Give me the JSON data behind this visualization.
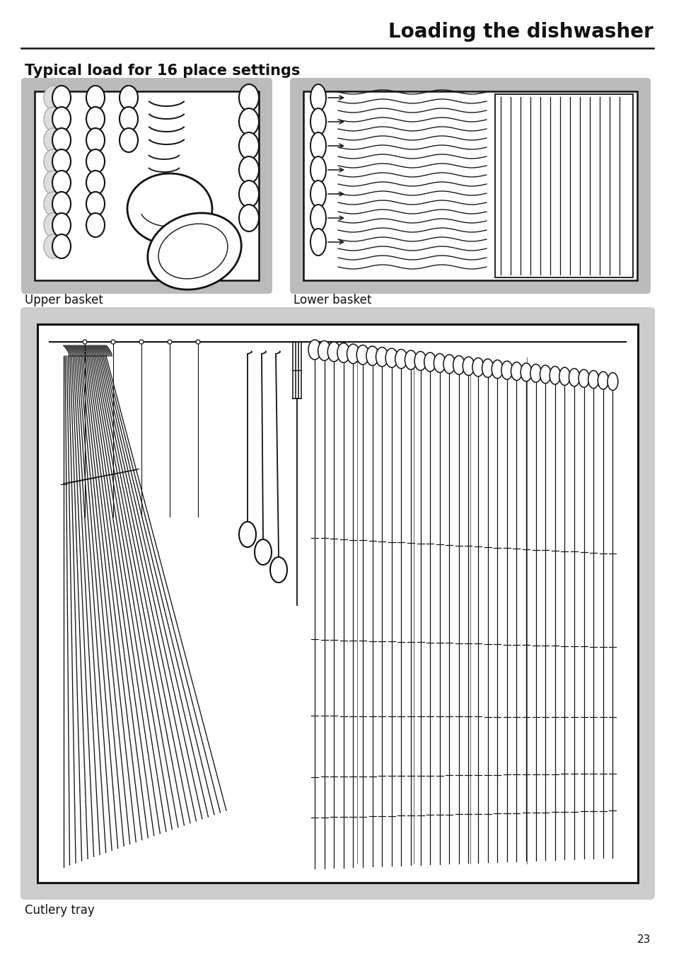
{
  "title": "Loading the dishwasher",
  "subtitle": "Typical load for 16 place settings",
  "label_upper": "Upper basket",
  "label_lower": "Lower basket",
  "label_cutlery": "Cutlery tray",
  "page_number": "23",
  "bg_color": "#ffffff",
  "panel_bg_outer": "#cccccc",
  "panel_bg_inner": "#ffffff",
  "line_color": "#111111",
  "title_fontsize": 20,
  "subtitle_fontsize": 15,
  "label_fontsize": 12,
  "page_fontsize": 11
}
